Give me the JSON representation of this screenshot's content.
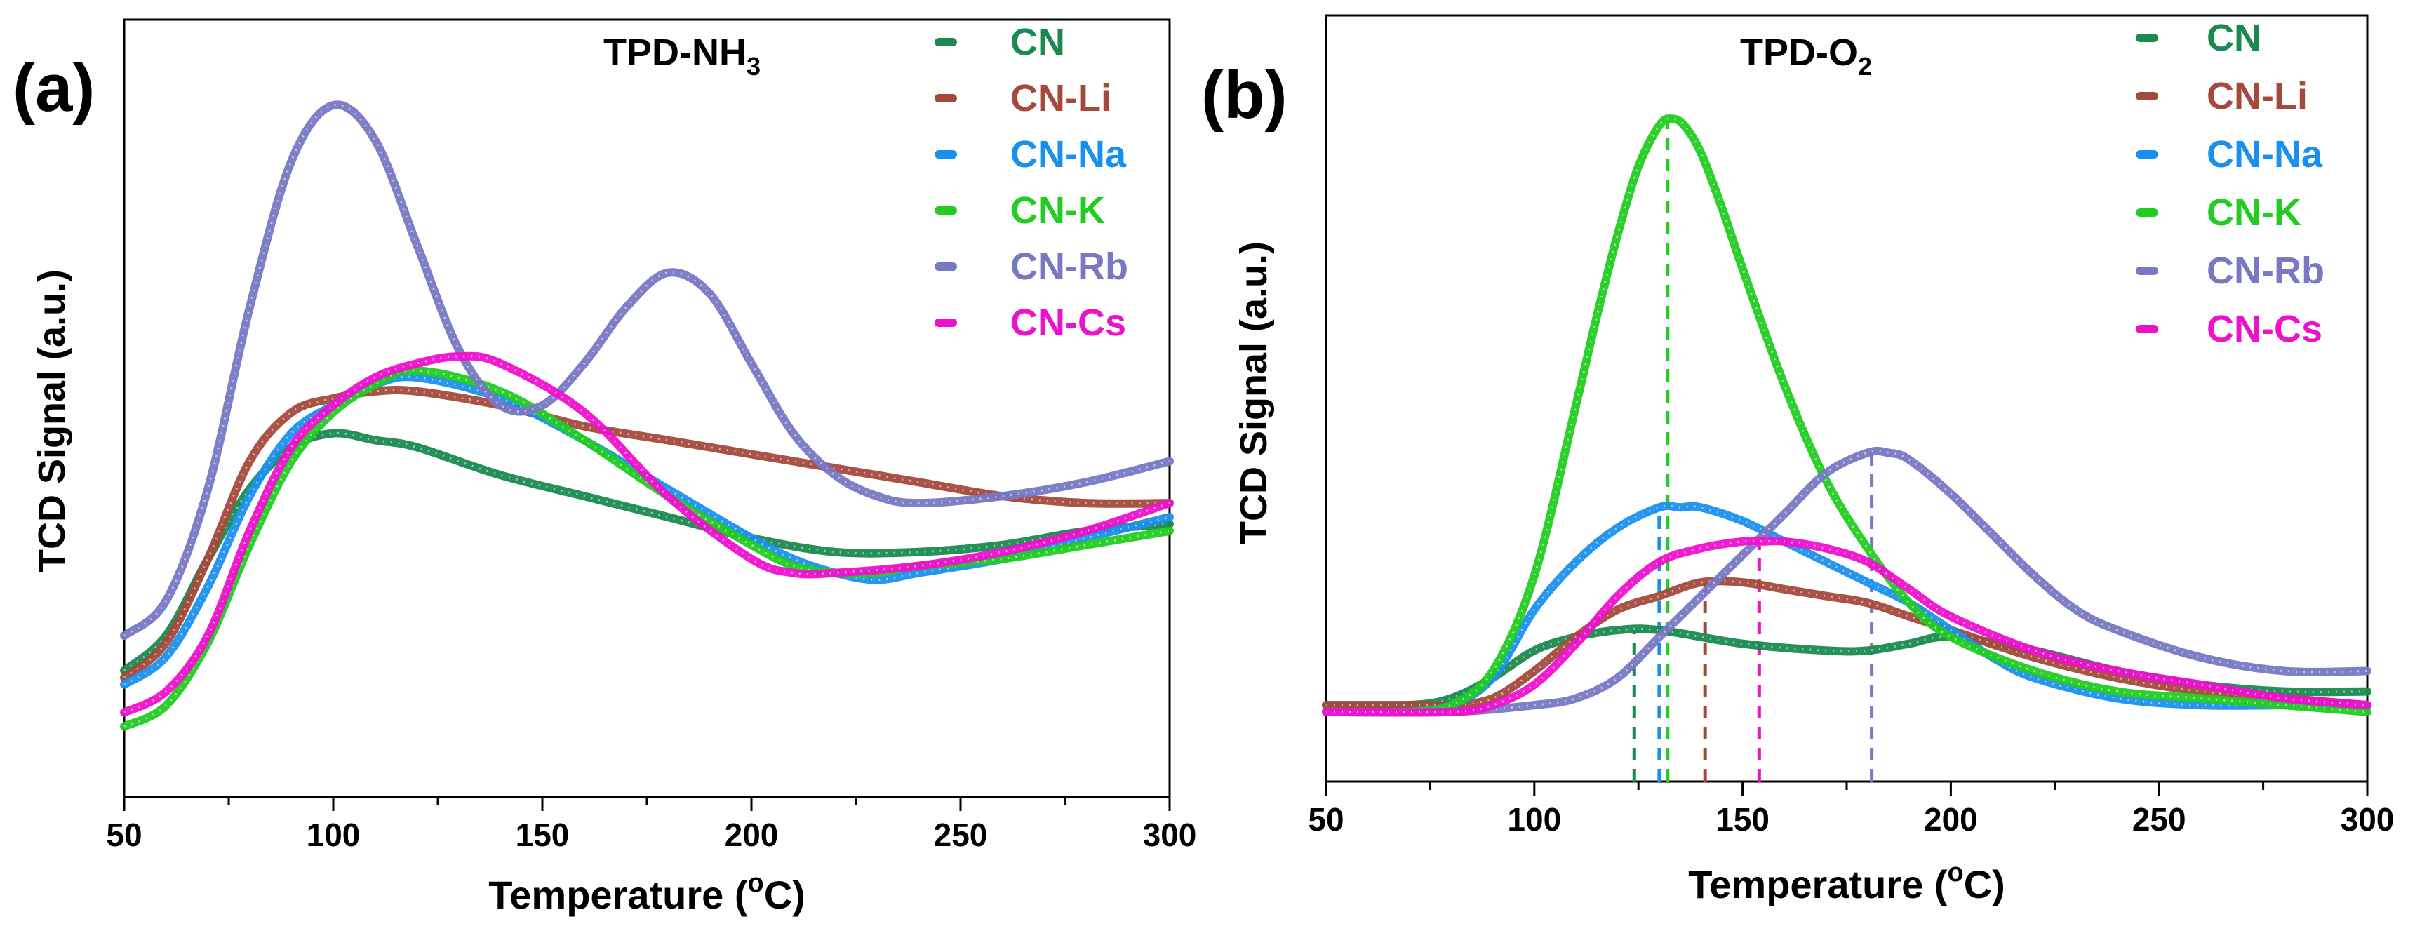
{
  "figure": {
    "panels": [
      {
        "label": "(a)"
      },
      {
        "label": "(b)"
      }
    ]
  },
  "chart_data": [
    {
      "type": "line",
      "title": "TPD-NH3",
      "title_main": "TPD-NH",
      "title_sub": "3",
      "xlabel": "Temperature (oC)",
      "xlabel_pre": "Temperature (",
      "xlabel_sup": "o",
      "xlabel_post": "C)",
      "ylabel": "TCD Signal (a.u.)",
      "xlim": [
        50,
        300
      ],
      "ylim": [
        0,
        100
      ],
      "xticks": [
        50,
        100,
        150,
        200,
        250,
        300
      ],
      "legend_position": "top-right",
      "series": [
        {
          "name": "CN",
          "color": "#1a8a50",
          "x": [
            50,
            60,
            70,
            80,
            90,
            100,
            110,
            120,
            140,
            160,
            180,
            200,
            220,
            240,
            260,
            280,
            300
          ],
          "y": [
            18,
            23,
            34,
            44,
            50,
            52,
            51,
            50,
            46,
            43,
            40,
            37,
            35,
            35,
            36,
            38,
            39
          ]
        },
        {
          "name": "CN-Li",
          "color": "#a34a3c",
          "x": [
            50,
            60,
            70,
            80,
            90,
            100,
            110,
            120,
            140,
            160,
            180,
            200,
            220,
            240,
            260,
            280,
            300
          ],
          "y": [
            17,
            22,
            34,
            48,
            55,
            57,
            58,
            58,
            56,
            53,
            51,
            49,
            47,
            45,
            43,
            42,
            42
          ]
        },
        {
          "name": "CN-Na",
          "color": "#1a90ee",
          "x": [
            50,
            60,
            70,
            80,
            90,
            100,
            110,
            120,
            140,
            160,
            180,
            200,
            210,
            220,
            230,
            240,
            260,
            280,
            300
          ],
          "y": [
            16,
            20,
            30,
            43,
            52,
            56,
            59,
            60,
            57,
            51,
            44,
            37,
            34,
            32,
            31,
            32,
            34,
            37,
            40
          ]
        },
        {
          "name": "CN-K",
          "color": "#22cc22",
          "x": [
            50,
            60,
            70,
            80,
            90,
            100,
            110,
            120,
            140,
            160,
            180,
            200,
            210,
            220,
            230,
            240,
            260,
            280,
            300
          ],
          "y": [
            10,
            13,
            22,
            36,
            48,
            55,
            59,
            61,
            58,
            51,
            43,
            36,
            33,
            32,
            32,
            33,
            34,
            36,
            38
          ]
        },
        {
          "name": "CN-Rb",
          "color": "#7878c4",
          "x": [
            50,
            60,
            70,
            80,
            90,
            100,
            110,
            120,
            130,
            140,
            150,
            160,
            170,
            180,
            190,
            200,
            210,
            220,
            230,
            240,
            260,
            280,
            300
          ],
          "y": [
            23,
            28,
            44,
            70,
            91,
            99,
            94,
            79,
            64,
            56,
            56,
            62,
            70,
            75,
            72,
            62,
            52,
            46,
            43,
            42,
            43,
            45,
            48
          ]
        },
        {
          "name": "CN-Cs",
          "color": "#ee11cc",
          "x": [
            50,
            60,
            70,
            80,
            90,
            100,
            110,
            120,
            130,
            140,
            160,
            180,
            200,
            210,
            220,
            240,
            260,
            280,
            300
          ],
          "y": [
            12,
            15,
            23,
            38,
            50,
            56,
            60,
            62,
            63,
            62,
            55,
            43,
            34,
            32,
            32,
            33,
            35,
            38,
            42
          ]
        }
      ]
    },
    {
      "type": "line",
      "title": "TPD-O2",
      "title_main": "TPD-O",
      "title_sub": "2",
      "xlabel": "Temperature (oC)",
      "xlabel_pre": "Temperature (",
      "xlabel_sup": "o",
      "xlabel_post": "C)",
      "ylabel": "TCD Signal (a.u.)",
      "xlim": [
        50,
        300
      ],
      "ylim": [
        0,
        100
      ],
      "xticks": [
        50,
        100,
        150,
        200,
        250,
        300
      ],
      "legend_position": "top-right",
      "peak_markers": [
        {
          "series": "CN",
          "x": 124,
          "color": "#1a8a50"
        },
        {
          "series": "CN-Na",
          "x": 130,
          "color": "#1a90ee"
        },
        {
          "series": "CN-K",
          "x": 132,
          "color": "#22cc22"
        },
        {
          "series": "CN-Li",
          "x": 141,
          "color": "#a34a3c"
        },
        {
          "series": "CN-Cs",
          "x": 154,
          "color": "#ee11cc"
        },
        {
          "series": "CN-Rb",
          "x": 181,
          "color": "#7878c4"
        }
      ],
      "series": [
        {
          "name": "CN",
          "color": "#1a8a50",
          "x": [
            50,
            70,
            80,
            90,
            100,
            110,
            120,
            130,
            150,
            170,
            180,
            190,
            200,
            220,
            240,
            260,
            280,
            300
          ],
          "y": [
            11,
            11,
            12,
            15,
            19,
            21,
            22,
            22,
            20,
            19,
            19,
            20,
            21,
            19,
            16,
            14,
            13,
            13
          ]
        },
        {
          "name": "CN-Li",
          "color": "#a34a3c",
          "x": [
            50,
            70,
            80,
            90,
            100,
            110,
            120,
            130,
            140,
            150,
            160,
            170,
            180,
            190,
            200,
            220,
            240,
            260,
            280,
            300
          ],
          "y": [
            11,
            11,
            11,
            12,
            16,
            21,
            25,
            27,
            29,
            29,
            28,
            27,
            26,
            24,
            22,
            18,
            15,
            13,
            12,
            11
          ]
        },
        {
          "name": "CN-Na",
          "color": "#1a90ee",
          "x": [
            50,
            70,
            80,
            90,
            100,
            110,
            120,
            130,
            135,
            140,
            150,
            160,
            170,
            180,
            190,
            200,
            210,
            220,
            240,
            260,
            280,
            300
          ],
          "y": [
            10,
            10,
            11,
            15,
            25,
            32,
            37,
            40,
            40,
            40,
            38,
            35,
            32,
            29,
            26,
            22,
            18,
            15,
            12,
            11,
            11,
            11
          ]
        },
        {
          "name": "CN-K",
          "color": "#22cc22",
          "x": [
            50,
            70,
            80,
            90,
            100,
            110,
            115,
            120,
            125,
            130,
            133,
            136,
            140,
            145,
            150,
            160,
            170,
            180,
            190,
            200,
            220,
            240,
            260,
            280,
            300
          ],
          "y": [
            10,
            10,
            11,
            16,
            30,
            55,
            68,
            80,
            90,
            96,
            97,
            96,
            92,
            84,
            75,
            58,
            44,
            34,
            26,
            21,
            16,
            13,
            12,
            11,
            10
          ]
        },
        {
          "name": "CN-Rb",
          "color": "#7878c4",
          "x": [
            50,
            80,
            100,
            110,
            120,
            130,
            140,
            150,
            160,
            170,
            180,
            185,
            190,
            200,
            210,
            220,
            230,
            240,
            260,
            280,
            300
          ],
          "y": [
            10,
            10,
            11,
            12,
            15,
            21,
            27,
            33,
            39,
            45,
            48,
            48,
            47,
            42,
            36,
            30,
            25,
            22,
            18,
            16,
            16
          ]
        },
        {
          "name": "CN-Cs",
          "color": "#ee11cc",
          "x": [
            50,
            80,
            90,
            100,
            110,
            120,
            130,
            140,
            150,
            155,
            160,
            170,
            180,
            190,
            200,
            220,
            240,
            260,
            280,
            300
          ],
          "y": [
            10,
            10,
            11,
            14,
            20,
            27,
            32,
            34,
            35,
            35,
            35,
            34,
            32,
            28,
            24,
            19,
            16,
            14,
            12,
            11
          ]
        }
      ]
    }
  ]
}
